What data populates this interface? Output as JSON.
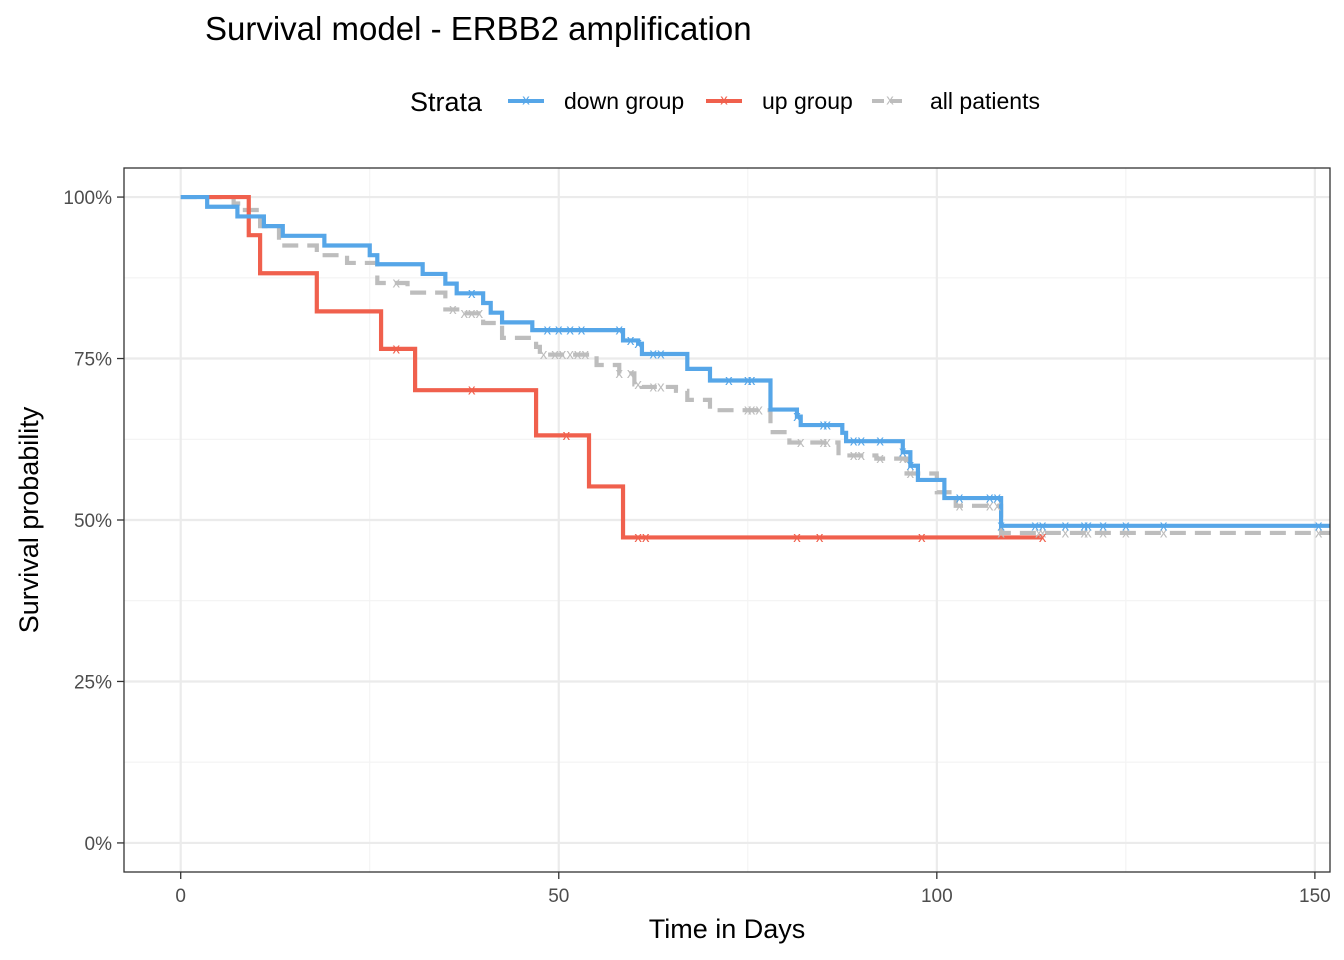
{
  "chart_data": {
    "type": "line",
    "title": "Survival model - ERBB2 amplification",
    "xlabel": "Time in Days",
    "ylabel": "Survival probability",
    "xlim": [
      -7.5,
      152
    ],
    "ylim": [
      -0.045,
      1.045
    ],
    "x_ticks": [
      0,
      50,
      100,
      150
    ],
    "x_tick_labels": [
      "0",
      "50",
      "100",
      "150"
    ],
    "y_ticks": [
      0,
      0.25,
      0.5,
      0.75,
      1.0
    ],
    "y_tick_labels": [
      "0%",
      "25%",
      "50%",
      "75%",
      "100%"
    ],
    "grid": true,
    "legend": {
      "title": "Strata",
      "position": "top"
    },
    "series": [
      {
        "name": "down group",
        "color": "#56a6e8",
        "dashed": false,
        "steps": [
          [
            0,
            1.0
          ],
          [
            3.5,
            0.985
          ],
          [
            7.5,
            0.97
          ],
          [
            11,
            0.955
          ],
          [
            13.5,
            0.94
          ],
          [
            19,
            0.925
          ],
          [
            25,
            0.91
          ],
          [
            26,
            0.896
          ],
          [
            32,
            0.881
          ],
          [
            35,
            0.866
          ],
          [
            36.5,
            0.851
          ],
          [
            40,
            0.836
          ],
          [
            41,
            0.821
          ],
          [
            42.5,
            0.806
          ],
          [
            46.5,
            0.794
          ],
          [
            58.5,
            0.778
          ],
          [
            60.5,
            0.773
          ],
          [
            61,
            0.757
          ],
          [
            67,
            0.734
          ],
          [
            70,
            0.716
          ],
          [
            78,
            0.694
          ],
          [
            78,
            0.671
          ],
          [
            81.5,
            0.66
          ],
          [
            82,
            0.647
          ],
          [
            87.5,
            0.635
          ],
          [
            88,
            0.622
          ],
          [
            95.5,
            0.605
          ],
          [
            96.5,
            0.584
          ],
          [
            97.5,
            0.562
          ],
          [
            101,
            0.534
          ],
          [
            108.5,
            0.515
          ],
          [
            108.5,
            0.491
          ],
          [
            152,
            0.491
          ]
        ],
        "censor_times": [
          38.5,
          48.5,
          50,
          51.5,
          53,
          58,
          59.5,
          60.5,
          62.5,
          63.5,
          72.5,
          75,
          75.5,
          81.5,
          85,
          85.5,
          89,
          90,
          92.5,
          95.5,
          96.5,
          103,
          107,
          108,
          108.5,
          113,
          114,
          117,
          119.5,
          120,
          122,
          125,
          130,
          150.5
        ]
      },
      {
        "name": "up group",
        "color": "#f0604d",
        "dashed": false,
        "steps": [
          [
            3.5,
            1.0
          ],
          [
            9,
            0.941
          ],
          [
            10.5,
            0.882
          ],
          [
            18,
            0.823
          ],
          [
            26.5,
            0.765
          ],
          [
            31,
            0.701
          ],
          [
            47,
            0.631
          ],
          [
            54,
            0.552
          ],
          [
            58.5,
            0.473
          ],
          [
            114,
            0.473
          ]
        ],
        "censor_times": [
          28.5,
          38.5,
          51,
          60.5,
          61.5,
          81.5,
          84.5,
          98,
          114
        ]
      },
      {
        "name": "all patients",
        "color": "#bdbdbd",
        "dashed": true,
        "steps": [
          [
            0,
            1.0
          ],
          [
            7,
            0.99
          ],
          [
            8,
            0.98
          ],
          [
            10.5,
            0.955
          ],
          [
            13,
            0.925
          ],
          [
            18,
            0.91
          ],
          [
            22,
            0.898
          ],
          [
            26,
            0.867
          ],
          [
            30,
            0.852
          ],
          [
            35,
            0.826
          ],
          [
            37,
            0.82
          ],
          [
            40,
            0.805
          ],
          [
            42.5,
            0.782
          ],
          [
            47,
            0.768
          ],
          [
            47.5,
            0.756
          ],
          [
            55,
            0.74
          ],
          [
            58,
            0.727
          ],
          [
            60,
            0.71
          ],
          [
            61,
            0.706
          ],
          [
            65.5,
            0.7
          ],
          [
            67,
            0.686
          ],
          [
            70,
            0.67
          ],
          [
            74,
            0.67
          ],
          [
            78,
            0.636
          ],
          [
            80.5,
            0.62
          ],
          [
            87,
            0.6
          ],
          [
            92,
            0.595
          ],
          [
            96,
            0.572
          ],
          [
            100,
            0.543
          ],
          [
            102.5,
            0.522
          ],
          [
            108.5,
            0.517
          ],
          [
            108.5,
            0.48
          ],
          [
            152,
            0.48
          ]
        ],
        "censor_times": [
          28.5,
          36,
          37.5,
          38.5,
          39.5,
          48,
          49.5,
          50.5,
          51.5,
          52.5,
          53.5,
          58,
          59.5,
          60.5,
          62.5,
          63.5,
          75,
          75.5,
          76.5,
          82,
          85,
          85.5,
          89,
          90,
          92.5,
          95.5,
          96.5,
          103,
          107,
          108,
          108.5,
          113.5,
          114,
          117,
          119.5,
          120,
          122,
          125,
          130,
          150.5
        ]
      }
    ]
  }
}
